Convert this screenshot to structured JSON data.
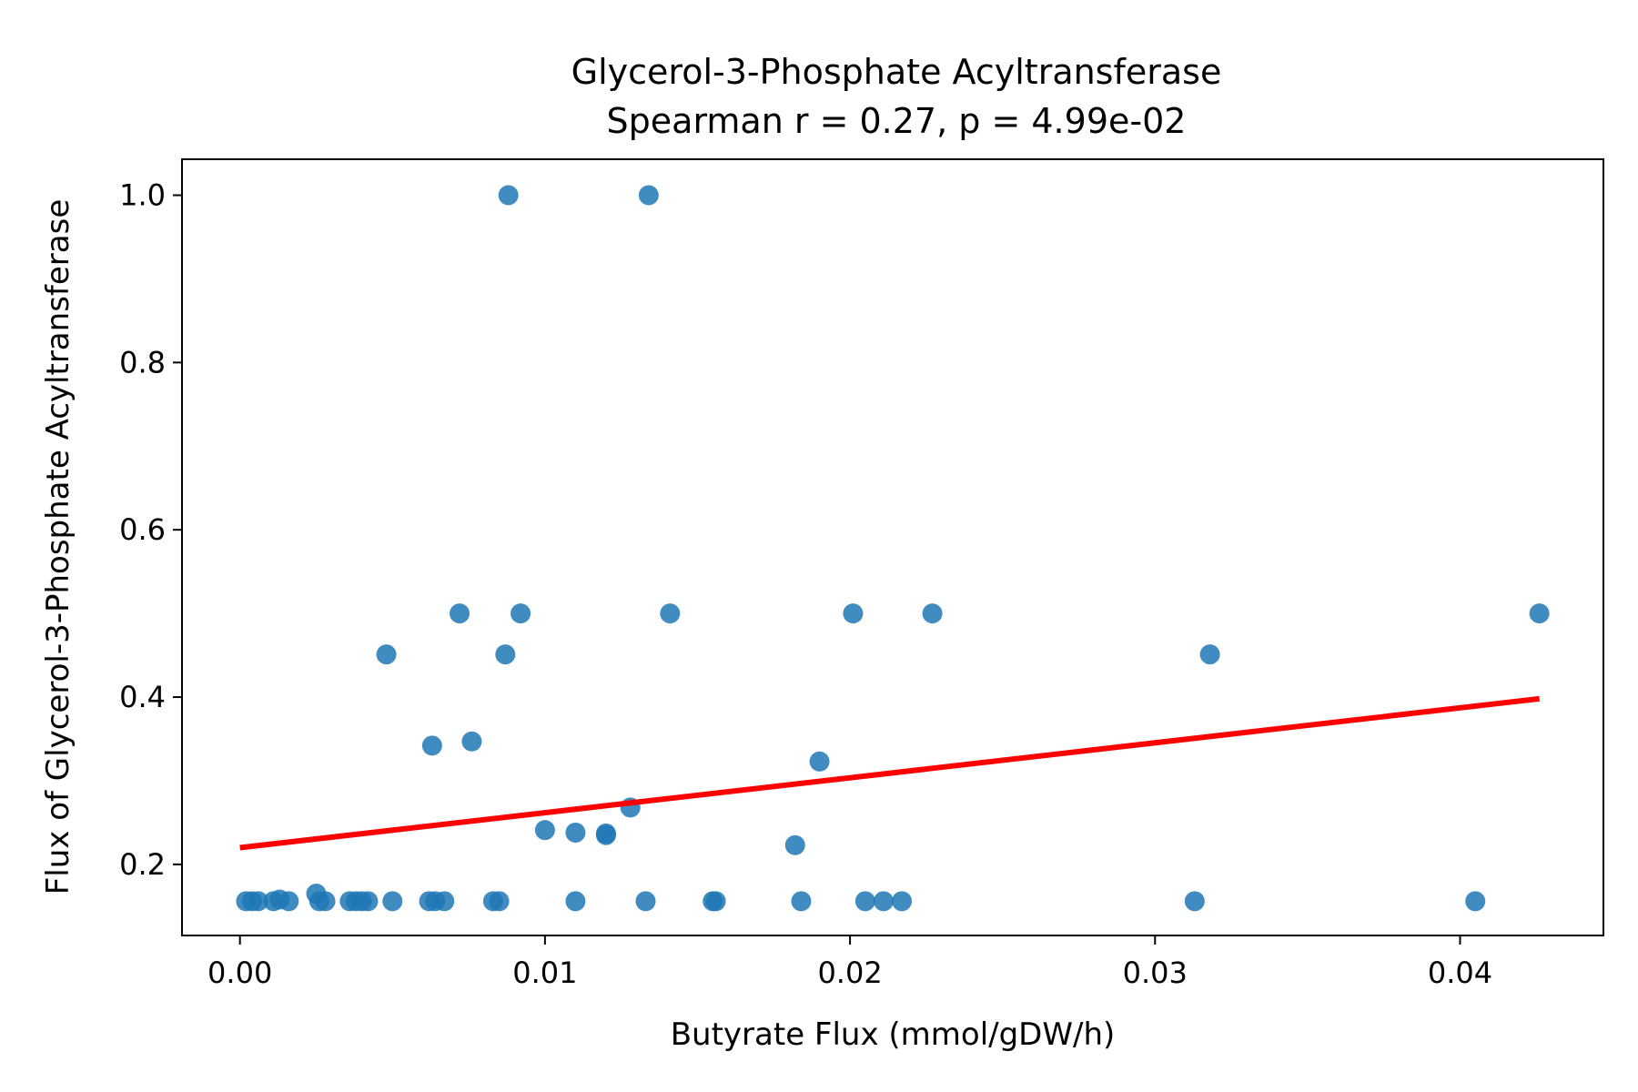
{
  "chart_data": {
    "type": "scatter",
    "title": "Glycerol-3-Phosphate Acyltransferase",
    "subtitle": "Spearman r = 0.27, p = 4.99e-02",
    "xlabel": "Butyrate Flux (mmol/gDW/h)",
    "ylabel": "Flux of Glycerol-3-Phosphate Acyltransferase",
    "xlim": [
      -0.0019,
      0.0447
    ],
    "ylim": [
      0.115,
      1.043
    ],
    "xticks": [
      0.0,
      0.01,
      0.02,
      0.03,
      0.04
    ],
    "xtick_labels": [
      "0.00",
      "0.01",
      "0.02",
      "0.03",
      "0.04"
    ],
    "yticks": [
      0.2,
      0.4,
      0.6,
      0.8,
      1.0
    ],
    "ytick_labels": [
      "0.2",
      "0.4",
      "0.6",
      "0.8",
      "1.0"
    ],
    "grid": false,
    "point_color": "#1f77b4",
    "fit_color": "#ff0000",
    "points": [
      {
        "x": 0.0002,
        "y": 0.156
      },
      {
        "x": 0.0004,
        "y": 0.156
      },
      {
        "x": 0.0006,
        "y": 0.156
      },
      {
        "x": 0.0011,
        "y": 0.156
      },
      {
        "x": 0.0013,
        "y": 0.158
      },
      {
        "x": 0.0016,
        "y": 0.156
      },
      {
        "x": 0.0025,
        "y": 0.165
      },
      {
        "x": 0.0026,
        "y": 0.156
      },
      {
        "x": 0.0028,
        "y": 0.156
      },
      {
        "x": 0.0036,
        "y": 0.156
      },
      {
        "x": 0.0038,
        "y": 0.156
      },
      {
        "x": 0.004,
        "y": 0.156
      },
      {
        "x": 0.0042,
        "y": 0.156
      },
      {
        "x": 0.005,
        "y": 0.156
      },
      {
        "x": 0.0048,
        "y": 0.451
      },
      {
        "x": 0.0062,
        "y": 0.156
      },
      {
        "x": 0.0064,
        "y": 0.156
      },
      {
        "x": 0.0067,
        "y": 0.156
      },
      {
        "x": 0.0063,
        "y": 0.342
      },
      {
        "x": 0.0072,
        "y": 0.5
      },
      {
        "x": 0.0076,
        "y": 0.347
      },
      {
        "x": 0.0083,
        "y": 0.156
      },
      {
        "x": 0.0085,
        "y": 0.156
      },
      {
        "x": 0.0087,
        "y": 0.451
      },
      {
        "x": 0.0088,
        "y": 1.0
      },
      {
        "x": 0.0092,
        "y": 0.5
      },
      {
        "x": 0.01,
        "y": 0.241
      },
      {
        "x": 0.011,
        "y": 0.156
      },
      {
        "x": 0.011,
        "y": 0.238
      },
      {
        "x": 0.012,
        "y": 0.235
      },
      {
        "x": 0.012,
        "y": 0.237
      },
      {
        "x": 0.0128,
        "y": 0.268
      },
      {
        "x": 0.0133,
        "y": 0.156
      },
      {
        "x": 0.0134,
        "y": 1.0
      },
      {
        "x": 0.0141,
        "y": 0.5
      },
      {
        "x": 0.0155,
        "y": 0.156
      },
      {
        "x": 0.0156,
        "y": 0.156
      },
      {
        "x": 0.0182,
        "y": 0.223
      },
      {
        "x": 0.0184,
        "y": 0.156
      },
      {
        "x": 0.019,
        "y": 0.323
      },
      {
        "x": 0.0201,
        "y": 0.5
      },
      {
        "x": 0.0205,
        "y": 0.156
      },
      {
        "x": 0.0211,
        "y": 0.156
      },
      {
        "x": 0.0217,
        "y": 0.156
      },
      {
        "x": 0.0227,
        "y": 0.5
      },
      {
        "x": 0.0313,
        "y": 0.156
      },
      {
        "x": 0.0318,
        "y": 0.451
      },
      {
        "x": 0.0405,
        "y": 0.156
      },
      {
        "x": 0.0426,
        "y": 0.5
      }
    ],
    "fit_line": {
      "x": [
        0.0,
        0.0426
      ],
      "y": [
        0.22,
        0.398
      ]
    }
  }
}
